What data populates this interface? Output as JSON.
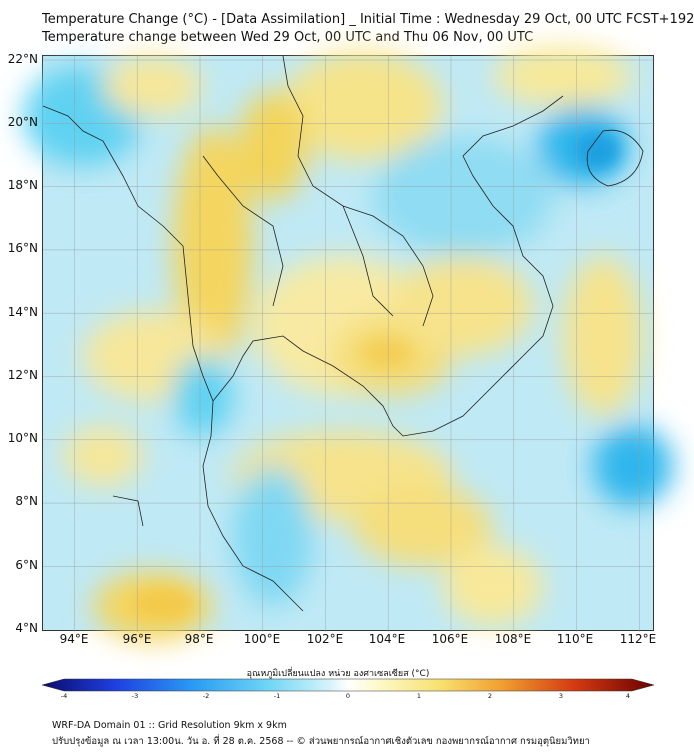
{
  "header": {
    "title_line1": "Temperature Change (°C) - [Data Assimilation] _ Initial Time : Wednesday 29 Oct, 00 UTC FCST+192",
    "title_line2": "Temperature change between Wed 29 Oct, 00 UTC and Thu 06 Nov, 00 UTC"
  },
  "map": {
    "lat_labels": [
      "22°N",
      "20°N",
      "18°N",
      "16°N",
      "14°N",
      "12°N",
      "10°N",
      "8°N",
      "6°N",
      "4°N"
    ],
    "lon_labels": [
      "94°E",
      "96°E",
      "98°E",
      "100°E",
      "102°E",
      "104°E",
      "106°E",
      "108°E",
      "110°E",
      "112°E"
    ],
    "lat_range": [
      4,
      22.2
    ],
    "lon_range": [
      93,
      112.5
    ],
    "background_color": "#bfe9f5"
  },
  "colorbar": {
    "title": "อุณหภูมิเปลี่ยนแปลง หน่วย องศาเซลเซียส (°C)",
    "tick_labels": [
      "-4",
      "-3",
      "-2",
      "-1",
      "0",
      "1",
      "2",
      "3",
      "4"
    ],
    "range": [
      -4,
      4
    ],
    "colors": [
      "#0b0b6b",
      "#1212b0",
      "#1f3fe0",
      "#2a6ff0",
      "#2a9df5",
      "#38c3f2",
      "#6fd6f5",
      "#a6e6f7",
      "#d5f3fb",
      "#ffffff",
      "#fdf9c8",
      "#fbf0a0",
      "#f8e16f",
      "#f5c842",
      "#f0a030",
      "#e8701f",
      "#d43a12",
      "#a8100c",
      "#6b0000"
    ]
  },
  "footer": {
    "line1": "WRF-DA Domain 01 :: Grid Resolution 9km x 9km",
    "line2": "ปรับปรุงข้อมูล ณ เวลา 13:00น. วัน อ. ที่ 28 ต.ค. 2568 -- © ส่วนพยากรณ์อากาศเชิงตัวเลข กองพยากรณ์อากาศ กรมอุตุนิยมวิทยา"
  }
}
